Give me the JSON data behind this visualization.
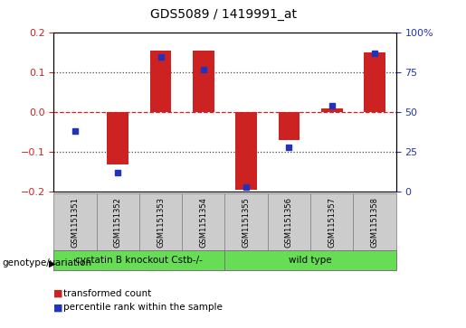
{
  "title": "GDS5089 / 1419991_at",
  "samples": [
    "GSM1151351",
    "GSM1151352",
    "GSM1151353",
    "GSM1151354",
    "GSM1151355",
    "GSM1151356",
    "GSM1151357",
    "GSM1151358"
  ],
  "red_values": [
    0.0,
    -0.13,
    0.155,
    0.155,
    -0.195,
    -0.07,
    0.01,
    0.15
  ],
  "blue_values": [
    38,
    12,
    85,
    77,
    3,
    28,
    54,
    87
  ],
  "ylim_left": [
    -0.2,
    0.2
  ],
  "ylim_right": [
    0,
    100
  ],
  "yticks_left": [
    -0.2,
    -0.1,
    0,
    0.1,
    0.2
  ],
  "ytick_labels_right": [
    "0",
    "25",
    "50",
    "75",
    "100%"
  ],
  "red_color": "#CC2222",
  "blue_color": "#2233BB",
  "dotted_color": "#444444",
  "group1_label": "cystatin B knockout Cstb-/-",
  "group2_label": "wild type",
  "group1_count": 4,
  "group2_count": 4,
  "group_color": "#66DD55",
  "row_label": "genotype/variation",
  "legend_red": "transformed count",
  "legend_blue": "percentile rank within the sample",
  "bar_width": 0.5,
  "blue_marker_size": 5
}
